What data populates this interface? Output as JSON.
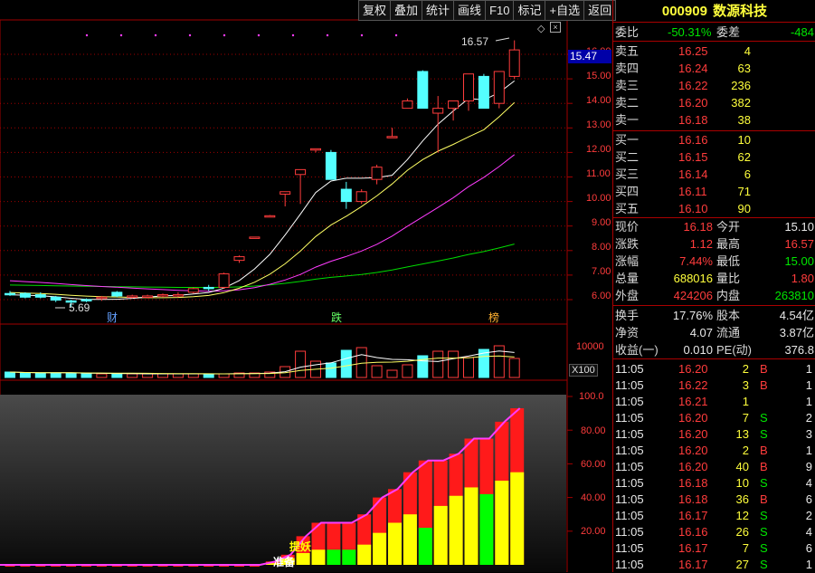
{
  "toolbar": {
    "items": [
      "复权",
      "叠加",
      "统计",
      "画线",
      "F10",
      "标记",
      "+自选",
      "返回"
    ]
  },
  "stock": {
    "code": "000909",
    "name": "数源科技"
  },
  "order_ratio": {
    "label1": "委比",
    "value1": "-50.31%",
    "label2": "委差",
    "value2": "-484"
  },
  "asks": [
    {
      "label": "卖五",
      "price": "16.25",
      "vol": "4"
    },
    {
      "label": "卖四",
      "price": "16.24",
      "vol": "63"
    },
    {
      "label": "卖三",
      "price": "16.22",
      "vol": "236"
    },
    {
      "label": "卖二",
      "price": "16.20",
      "vol": "382"
    },
    {
      "label": "卖一",
      "price": "16.18",
      "vol": "38"
    }
  ],
  "bids": [
    {
      "label": "买一",
      "price": "16.16",
      "vol": "10"
    },
    {
      "label": "买二",
      "price": "16.15",
      "vol": "62"
    },
    {
      "label": "买三",
      "price": "16.14",
      "vol": "6"
    },
    {
      "label": "买四",
      "price": "16.11",
      "vol": "71"
    },
    {
      "label": "买五",
      "price": "16.10",
      "vol": "90"
    }
  ],
  "quote": [
    {
      "l1": "现价",
      "v1": "16.18",
      "l2": "今开",
      "v2": "15.10"
    },
    {
      "l1": "涨跌",
      "v1": "1.12",
      "l2": "最高",
      "v2": "16.57"
    },
    {
      "l1": "涨幅",
      "v1": "7.44%",
      "l2": "最低",
      "v2": "15.00"
    },
    {
      "l1": "总量",
      "v1": "688016",
      "l2": "量比",
      "v2": "1.80"
    },
    {
      "l1": "外盘",
      "v1": "424206",
      "l2": "内盘",
      "v2": "263810"
    }
  ],
  "fundamentals": [
    {
      "l1": "换手",
      "v1": "17.76%",
      "l2": "股本",
      "v2": "4.54亿"
    },
    {
      "l1": "净资",
      "v1": "4.07",
      "l2": "流通",
      "v2": "3.87亿"
    },
    {
      "l1": "收益(一)",
      "v1": "0.010",
      "l2": "PE(动)",
      "v2": "376.8"
    }
  ],
  "ticks": [
    {
      "time": "11:05",
      "price": "16.20",
      "vol": "2",
      "side": "B",
      "n": "1"
    },
    {
      "time": "11:05",
      "price": "16.22",
      "vol": "3",
      "side": "B",
      "n": "1"
    },
    {
      "time": "11:05",
      "price": "16.21",
      "vol": "1",
      "side": "",
      "n": "1"
    },
    {
      "time": "11:05",
      "price": "16.20",
      "vol": "7",
      "side": "S",
      "n": "2"
    },
    {
      "time": "11:05",
      "price": "16.20",
      "vol": "13",
      "side": "S",
      "n": "3"
    },
    {
      "time": "11:05",
      "price": "16.20",
      "vol": "2",
      "side": "B",
      "n": "1"
    },
    {
      "time": "11:05",
      "price": "16.20",
      "vol": "40",
      "side": "B",
      "n": "9"
    },
    {
      "time": "11:05",
      "price": "16.18",
      "vol": "10",
      "side": "S",
      "n": "4"
    },
    {
      "time": "11:05",
      "price": "16.18",
      "vol": "36",
      "side": "B",
      "n": "6"
    },
    {
      "time": "11:05",
      "price": "16.17",
      "vol": "12",
      "side": "S",
      "n": "2"
    },
    {
      "time": "11:05",
      "price": "16.16",
      "vol": "26",
      "side": "S",
      "n": "4"
    },
    {
      "time": "11:05",
      "price": "16.17",
      "vol": "7",
      "side": "S",
      "n": "6"
    },
    {
      "time": "11:05",
      "price": "16.17",
      "vol": "27",
      "side": "S",
      "n": "1"
    }
  ],
  "chart": {
    "price_axis": [
      "16.00",
      "15.00",
      "14.00",
      "13.00",
      "12.00",
      "11.00",
      "10.00",
      "9.00",
      "8.00",
      "7.00",
      "6.00"
    ],
    "current_price_tag": "15.47",
    "high_label": "16.57",
    "low_label": "5.69",
    "event_labels": [
      "财",
      "跌",
      "榜"
    ],
    "volume_axis": "10000",
    "volume_unit": "X100",
    "indicator_axis": [
      "100.0",
      "80.00",
      "60.00",
      "40.00",
      "20.00"
    ],
    "indicator_labels": [
      "提妖",
      "准备"
    ]
  },
  "colors": {
    "up": "#ff3c3c",
    "down": "#54ffff",
    "ma5": "#ffffff",
    "ma10": "#ffff64",
    "ma20": "#ff3cff",
    "ma60": "#00dd00",
    "grid": "#a00000"
  },
  "chart_data": {
    "type": "candlestick",
    "candles": [
      {
        "o": 6.25,
        "h": 6.35,
        "l": 6.15,
        "c": 6.2
      },
      {
        "o": 6.25,
        "h": 6.3,
        "l": 6.05,
        "c": 6.1
      },
      {
        "o": 6.2,
        "h": 6.3,
        "l": 6.05,
        "c": 6.1
      },
      {
        "o": 6.1,
        "h": 6.15,
        "l": 5.9,
        "c": 5.98
      },
      {
        "o": 5.95,
        "h": 6.0,
        "l": 5.69,
        "c": 5.9
      },
      {
        "o": 6.0,
        "h": 6.05,
        "l": 5.9,
        "c": 5.95
      },
      {
        "o": 6.05,
        "h": 6.15,
        "l": 5.95,
        "c": 6.1
      },
      {
        "o": 6.3,
        "h": 6.35,
        "l": 6.1,
        "c": 6.15
      },
      {
        "o": 6.12,
        "h": 6.2,
        "l": 6.05,
        "c": 6.15
      },
      {
        "o": 6.1,
        "h": 6.2,
        "l": 6.05,
        "c": 6.15
      },
      {
        "o": 6.15,
        "h": 6.25,
        "l": 6.1,
        "c": 6.2
      },
      {
        "o": 6.2,
        "h": 6.3,
        "l": 6.1,
        "c": 6.2
      },
      {
        "o": 6.3,
        "h": 6.5,
        "l": 6.25,
        "c": 6.45
      },
      {
        "o": 6.5,
        "h": 6.6,
        "l": 6.35,
        "c": 6.45
      },
      {
        "o": 6.5,
        "h": 7.1,
        "l": 6.45,
        "c": 7.05
      },
      {
        "o": 7.6,
        "h": 7.8,
        "l": 7.5,
        "c": 7.75
      },
      {
        "o": 8.5,
        "h": 8.55,
        "l": 8.5,
        "c": 8.55
      },
      {
        "o": 9.4,
        "h": 9.45,
        "l": 9.4,
        "c": 9.42
      },
      {
        "o": 10.3,
        "h": 10.4,
        "l": 9.8,
        "c": 10.4
      },
      {
        "o": 11.1,
        "h": 11.3,
        "l": 9.9,
        "c": 11.3
      },
      {
        "o": 12.1,
        "h": 12.15,
        "l": 12.0,
        "c": 12.15
      },
      {
        "o": 12.0,
        "h": 12.1,
        "l": 10.9,
        "c": 10.9
      },
      {
        "o": 10.5,
        "h": 10.8,
        "l": 9.7,
        "c": 10.0
      },
      {
        "o": 10.0,
        "h": 10.5,
        "l": 9.9,
        "c": 10.4
      },
      {
        "o": 10.9,
        "h": 11.5,
        "l": 10.7,
        "c": 11.4
      },
      {
        "o": 12.6,
        "h": 13.0,
        "l": 12.6,
        "c": 12.65
      },
      {
        "o": 13.8,
        "h": 14.2,
        "l": 13.8,
        "c": 14.1
      },
      {
        "o": 15.3,
        "h": 15.35,
        "l": 13.8,
        "c": 13.8
      },
      {
        "o": 13.6,
        "h": 14.3,
        "l": 12.0,
        "c": 13.8
      },
      {
        "o": 13.8,
        "h": 14.1,
        "l": 13.3,
        "c": 14.1
      },
      {
        "o": 14.1,
        "h": 15.2,
        "l": 13.7,
        "c": 15.2
      },
      {
        "o": 15.1,
        "h": 15.2,
        "l": 13.8,
        "c": 13.8
      },
      {
        "o": 14.0,
        "h": 15.3,
        "l": 13.8,
        "c": 15.3
      },
      {
        "o": 15.1,
        "h": 16.57,
        "l": 15.0,
        "c": 16.18
      }
    ],
    "volumes": [
      6,
      5,
      5,
      5,
      5,
      4,
      4,
      4,
      4,
      4,
      4,
      4,
      4,
      4,
      4,
      5,
      5,
      6,
      12,
      29,
      18,
      16,
      30,
      33,
      13,
      8,
      14,
      24,
      29,
      29,
      22,
      31,
      35,
      21
    ],
    "indicator": [
      0,
      0,
      0,
      0,
      0,
      0,
      0,
      0,
      0,
      0,
      0,
      0,
      0,
      0,
      0,
      0,
      0,
      2,
      6,
      17,
      25,
      25,
      25,
      30,
      40,
      45,
      55,
      62,
      62,
      66,
      75,
      75,
      85,
      93
    ],
    "indicator_base": [
      0,
      0,
      0,
      0,
      0,
      0,
      0,
      0,
      0,
      0,
      0,
      0,
      0,
      0,
      0,
      0,
      0,
      1,
      4,
      7,
      9,
      9,
      9,
      12,
      19,
      25,
      30,
      22,
      35,
      41,
      46,
      42,
      50,
      55
    ]
  }
}
